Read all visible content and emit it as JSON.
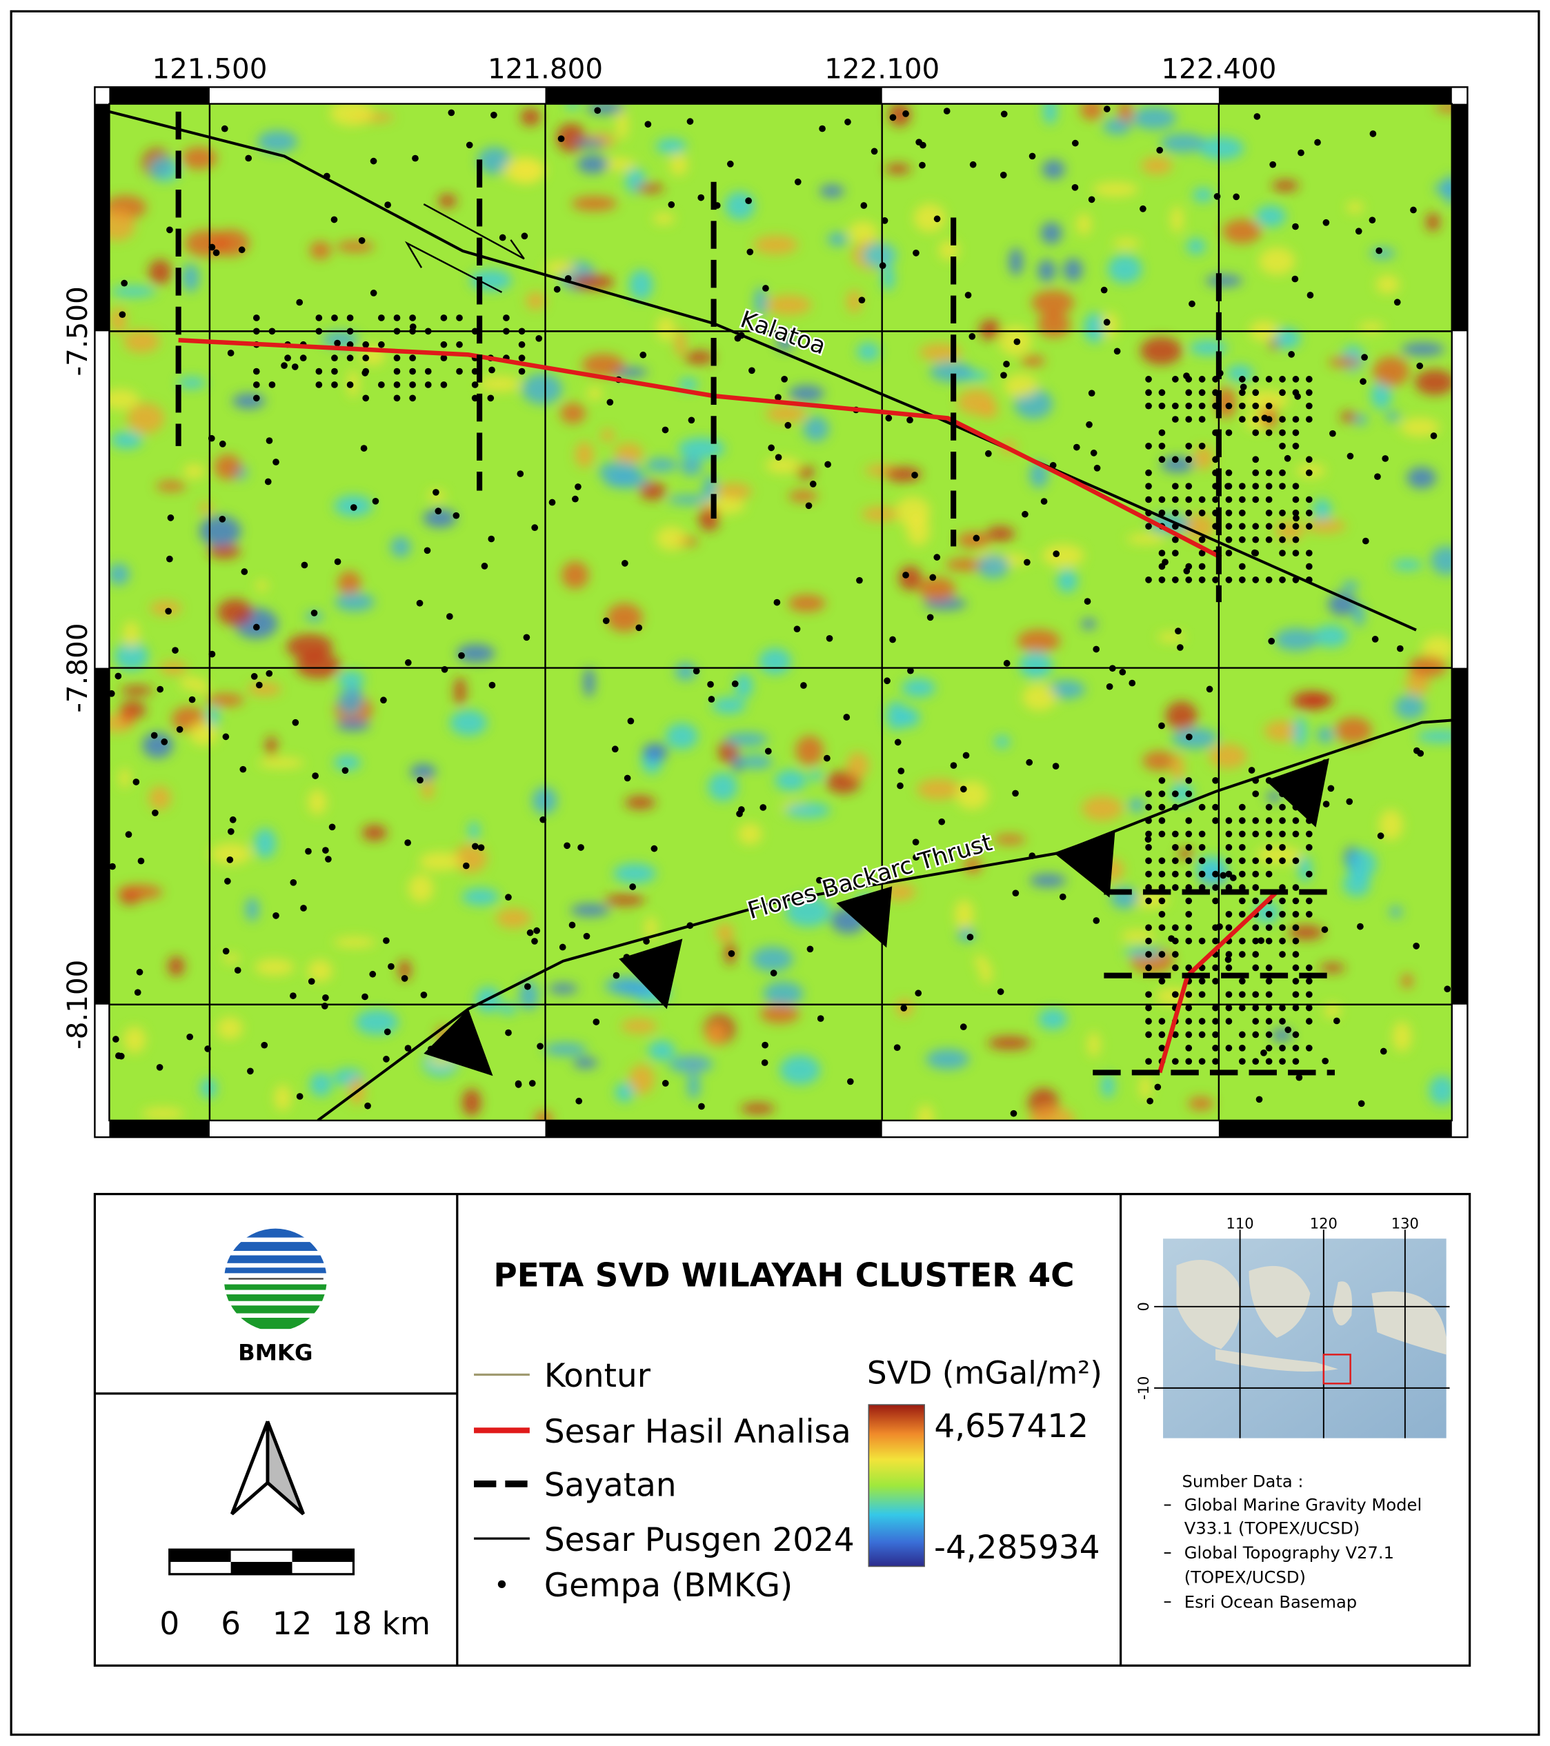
{
  "map": {
    "lon_labels": [
      "121.500",
      "121.800",
      "122.100",
      "122.400"
    ],
    "lat_labels": [
      "-7.500",
      "-7.800",
      "-8.100"
    ],
    "fault_labels": [
      "Kalatoa",
      "Flores Backarc Thrust"
    ]
  },
  "logo": {
    "name": "BMKG"
  },
  "scale_bar": {
    "labels": [
      "0",
      "6",
      "12",
      "18 km"
    ]
  },
  "title": "PETA SVD WILAYAH CLUSTER 4C",
  "legend": {
    "items": [
      "Kontur",
      "Sesar Hasil Analisa",
      "Sayatan",
      "Sesar Pusgen 2024",
      "Gempa (BMKG)"
    ]
  },
  "colorbar": {
    "title": "SVD (mGal/m²)",
    "max": "4,657412",
    "min": "-4,285934"
  },
  "inset": {
    "x_labels": [
      "110",
      "120",
      "130"
    ],
    "y_labels": [
      "0",
      "-10"
    ]
  },
  "sources": {
    "heading": "Sumber Data :",
    "items": [
      [
        "Global Marine Gravity Model",
        "V33.1 (TOPEX/UCSD)"
      ],
      [
        "Global Topography V27.1",
        "(TOPEX/UCSD)"
      ],
      [
        "Esri Ocean Basemap"
      ]
    ]
  }
}
